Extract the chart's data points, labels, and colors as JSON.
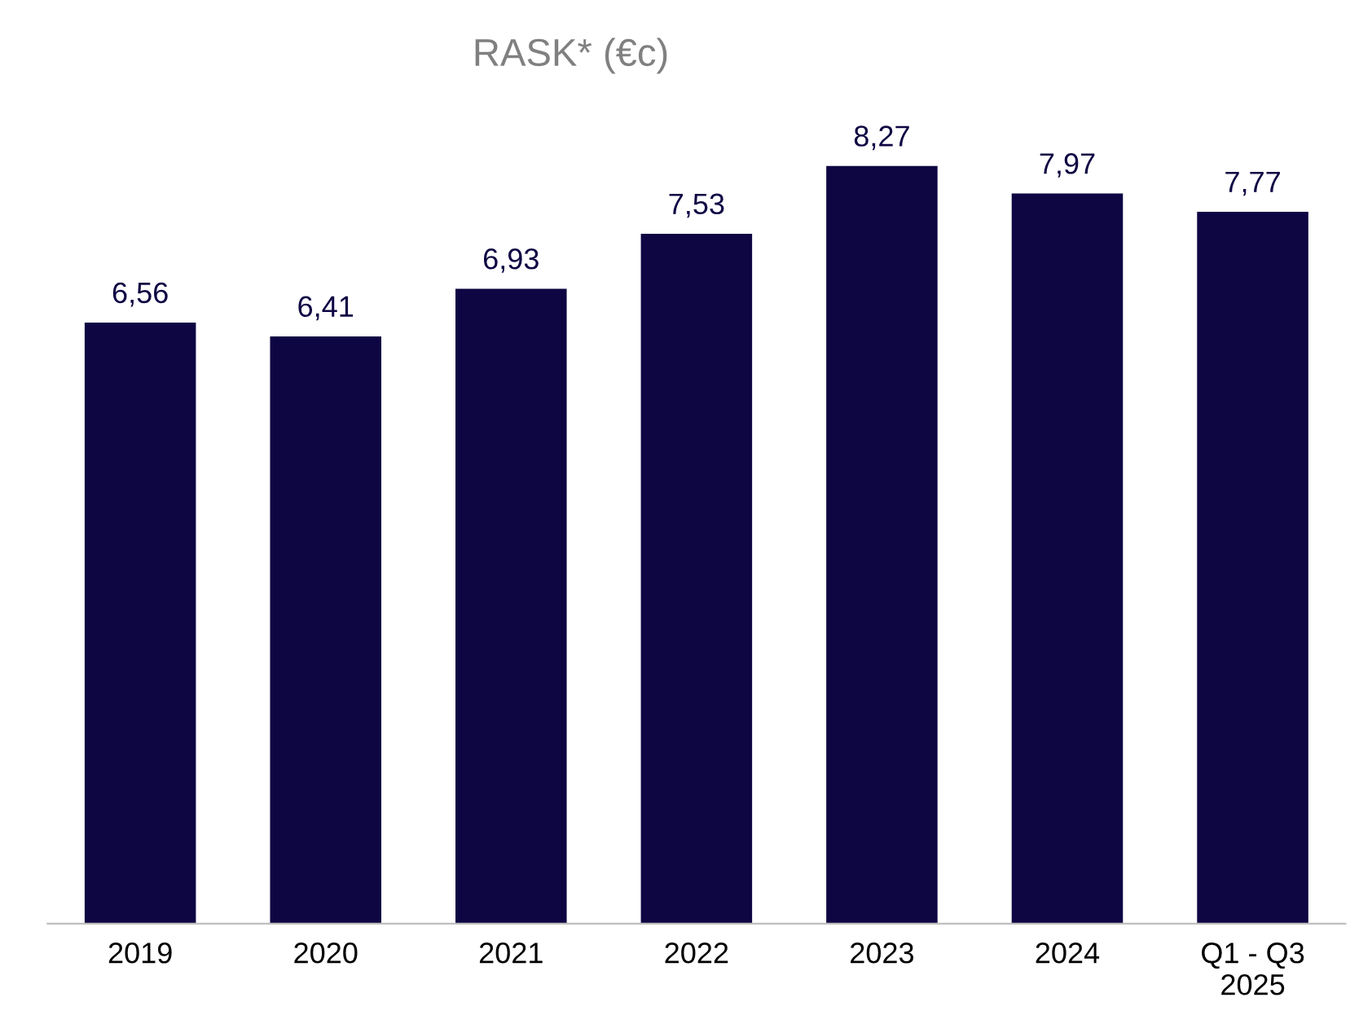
{
  "chart_data": {
    "type": "bar",
    "title": "RASK* (€c)",
    "categories": [
      "2019",
      "2020",
      "2021",
      "2022",
      "2023",
      "2024",
      "Q1 - Q3\n2025"
    ],
    "values": [
      6.56,
      6.41,
      6.93,
      7.53,
      8.27,
      7.97,
      7.77
    ],
    "value_labels": [
      "6,56",
      "6,41",
      "6,93",
      "7,53",
      "8,27",
      "7,97",
      "7,77"
    ],
    "color": "#0e0643",
    "grid": false,
    "legend": false
  }
}
